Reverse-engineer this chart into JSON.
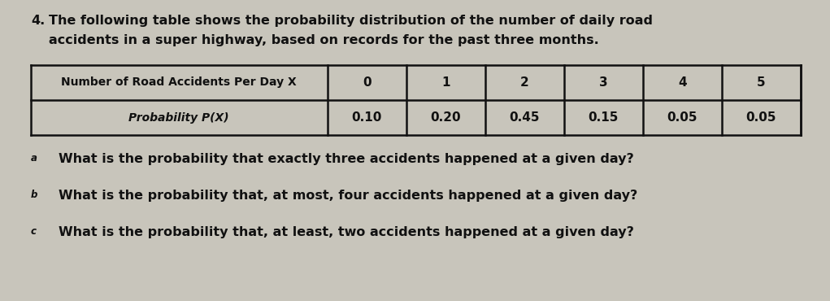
{
  "item_number": "4.",
  "intro_text_line1": "The following table shows the probability distribution of the number of daily road",
  "intro_text_line2": "accidents in a super highway, based on records for the past three months.",
  "col_header": "Number of Road Accidents Per Day X",
  "row_header": "Probability P(X)",
  "x_values": [
    "0",
    "1",
    "2",
    "3",
    "4",
    "5"
  ],
  "p_values": [
    "0.10",
    "0.20",
    "0.45",
    "0.15",
    "0.05",
    "0.05"
  ],
  "question_a": "What is the probability that exactly three accidents happened at a given day?",
  "question_b": "What is the probability that, at most, four accidents happened at a given day?",
  "question_c": "What is the probability that, at least, two accidents happened at a given day?",
  "label_a": "a",
  "label_b": "b",
  "label_c": "c",
  "bg_color": "#c8c5bb",
  "table_header_bg": "#b8b5ab",
  "table_data_bg": "#c8c5bb",
  "text_color": "#111111",
  "border_color": "#111111",
  "fig_width": 10.21,
  "fig_height": 3.7,
  "dpi": 100
}
